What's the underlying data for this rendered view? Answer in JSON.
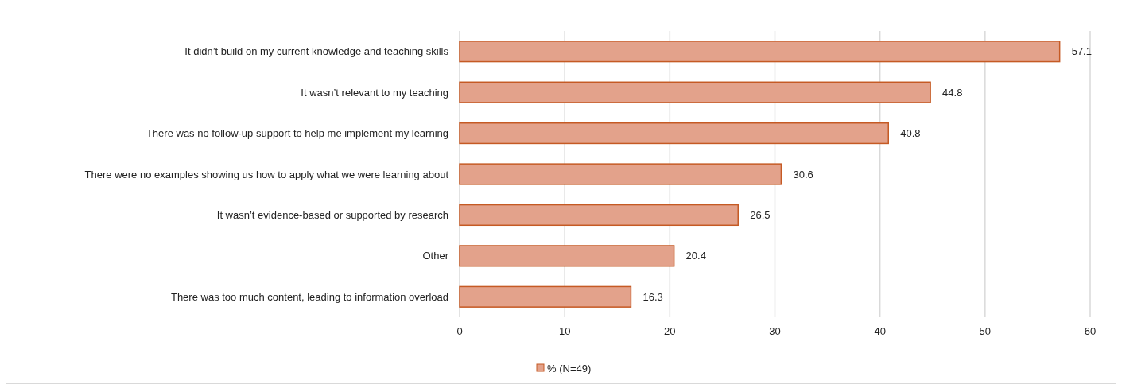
{
  "chart_data": {
    "type": "bar",
    "orientation": "horizontal",
    "categories": [
      "It didn’t build on my current knowledge and teaching skills",
      "It wasn’t relevant to my teaching",
      "There was no follow-up support to help me implement my learning",
      "There were no examples showing us how to apply what we were learning about",
      "It wasn’t evidence-based or supported by research",
      "Other",
      "There was too much content, leading to information overload"
    ],
    "series": [
      {
        "name": "% (N=49)",
        "color": "#e3a28b",
        "values": [
          57.1,
          44.8,
          40.8,
          30.6,
          26.5,
          20.4,
          16.3
        ]
      }
    ],
    "xlim": [
      0,
      60
    ],
    "xticks": [
      0,
      10,
      20,
      30,
      40,
      50,
      60
    ],
    "grid": "x",
    "legend": "bottom",
    "data_labels": true
  }
}
